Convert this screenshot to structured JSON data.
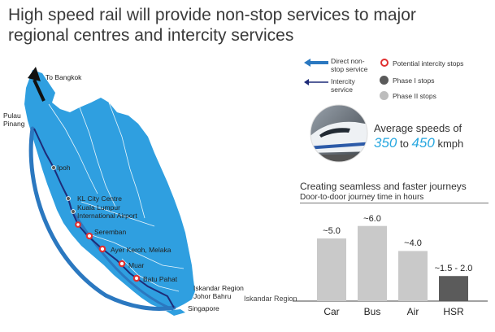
{
  "title_line1": "High speed rail will provide non-stop services to major",
  "title_line2": "regional centres and intercity services",
  "map": {
    "places": {
      "bangkok": "To Bangkok",
      "penang1": "Pulau",
      "penang2": "Pinang",
      "ipoh": "Ipoh",
      "klcc": "KL City Centre",
      "klia1": "Kuala Lumpur",
      "klia2": "International Airport",
      "seremban": "Seremban",
      "melaka": "Ayer Keroh, Melaka",
      "muar": "Muar",
      "batupahat": "Batu Pahat",
      "iskandar1": "Iskandar Region",
      "iskandar2": "Johor Bahru",
      "singapore": "Singapore"
    }
  },
  "legend": {
    "direct1": "Direct non-",
    "direct2": "stop service",
    "intercity1": "Intercity",
    "intercity2": "service",
    "potential": "Potential intercity stops",
    "phase1": "Phase I stops",
    "phase2": "Phase II stops",
    "colors": {
      "direct": "#2b78c0",
      "intercity": "#1e2b78",
      "potential": "#e03030",
      "phase1": "#5a5a5a",
      "phase2": "#bdbdbd"
    }
  },
  "speed": {
    "heading": "Average speeds of",
    "low": "350",
    "to": "to",
    "high": "450",
    "unit": "kmph"
  },
  "chart_data": {
    "type": "bar",
    "title": "Creating seamless and faster journeys",
    "subtitle": "Door-to-door journey time in hours",
    "baseline_label": "Iskandar Region",
    "categories": [
      "Car",
      "Bus",
      "Air",
      "HSR"
    ],
    "values": [
      5.0,
      6.0,
      4.0,
      2.0
    ],
    "value_labels": [
      "~5.0",
      "~6.0",
      "~4.0",
      "~1.5 - 2.0"
    ],
    "colors": [
      "#c9c9c9",
      "#c9c9c9",
      "#c9c9c9",
      "#5b5b5b"
    ],
    "ylim": [
      0,
      6.5
    ]
  }
}
